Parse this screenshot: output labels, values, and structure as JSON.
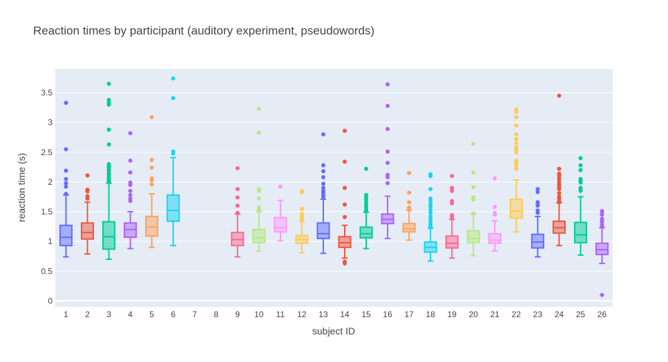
{
  "chart_data": {
    "type": "box",
    "title": "Reaction times by participant (auditory experiment,  pseudowords)",
    "xlabel": "subject ID",
    "ylabel": "reaction time (s)",
    "ylim": [
      -0.1,
      3.9
    ],
    "yticks": [
      0,
      0.5,
      1,
      1.5,
      2,
      2.5,
      3,
      3.5
    ],
    "categories": [
      "1",
      "2",
      "3",
      "4",
      "5",
      "6",
      "7",
      "8",
      "9",
      "10",
      "11",
      "12",
      "13",
      "14",
      "15",
      "16",
      "17",
      "18",
      "19",
      "20",
      "21",
      "22",
      "23",
      "24",
      "25",
      "26"
    ],
    "grid": true,
    "legend": "none",
    "boxes": [
      {
        "id": "1",
        "color": "#636efa",
        "q1": 0.93,
        "median": 1.07,
        "q3": 1.27,
        "lower": 0.74,
        "upper": 1.78,
        "outliers": [
          3.33,
          2.55,
          2.19,
          2.05,
          1.98,
          1.92,
          1.8
        ]
      },
      {
        "id": "2",
        "color": "#ef553b",
        "q1": 1.04,
        "median": 1.15,
        "q3": 1.31,
        "lower": 0.79,
        "upper": 1.66,
        "outliers": [
          2.11,
          1.87,
          1.84,
          1.76,
          1.72
        ]
      },
      {
        "id": "3",
        "color": "#00cc96",
        "q1": 0.87,
        "median": 1.08,
        "q3": 1.33,
        "lower": 0.7,
        "upper": 1.98,
        "outliers": [
          3.65,
          3.38,
          3.33,
          3.3,
          2.88,
          2.63,
          2.3,
          2.27,
          2.24,
          2.2,
          2.15,
          2.12,
          2.08,
          2.05,
          2.02,
          2.0
        ]
      },
      {
        "id": "4",
        "color": "#ab63fa",
        "q1": 1.07,
        "median": 1.2,
        "q3": 1.31,
        "lower": 0.88,
        "upper": 1.5,
        "outliers": [
          2.82,
          2.36,
          2.16,
          1.99,
          1.95,
          1.85,
          1.78,
          1.72,
          1.68
        ]
      },
      {
        "id": "5",
        "color": "#ffa15a",
        "q1": 1.09,
        "median": 1.24,
        "q3": 1.42,
        "lower": 0.9,
        "upper": 1.8,
        "outliers": [
          3.09,
          2.37,
          2.24,
          2.06,
          2.03,
          1.96
        ]
      },
      {
        "id": "6",
        "color": "#19d3f3",
        "q1": 1.34,
        "median": 1.52,
        "q3": 1.78,
        "lower": 0.93,
        "upper": 2.41,
        "outliers": [
          3.74,
          3.41,
          2.51,
          2.48
        ]
      },
      {
        "id": "7",
        "color": "#ff6692"
      },
      {
        "id": "8",
        "color": "#b6e880"
      },
      {
        "id": "9",
        "color": "#ff6692",
        "q1": 0.93,
        "median": 1.03,
        "q3": 1.15,
        "lower": 0.74,
        "upper": 1.46,
        "outliers": [
          2.23,
          1.88,
          1.74,
          1.6,
          1.48
        ]
      },
      {
        "id": "10",
        "color": "#b6e880",
        "q1": 0.98,
        "median": 1.06,
        "q3": 1.2,
        "lower": 0.84,
        "upper": 1.5,
        "outliers": [
          3.23,
          2.83,
          1.88,
          1.85,
          1.72,
          1.57,
          1.53
        ]
      },
      {
        "id": "11",
        "color": "#ff97ff",
        "q1": 1.16,
        "median": 1.23,
        "q3": 1.4,
        "lower": 1.01,
        "upper": 1.69,
        "outliers": [
          1.92
        ]
      },
      {
        "id": "12",
        "color": "#fecb52",
        "q1": 0.97,
        "median": 1.03,
        "q3": 1.1,
        "lower": 0.81,
        "upper": 1.34,
        "outliers": [
          1.85,
          1.83,
          1.55,
          1.46,
          1.42,
          1.38,
          1.35
        ]
      },
      {
        "id": "13",
        "color": "#636efa",
        "q1": 1.05,
        "median": 1.13,
        "q3": 1.31,
        "lower": 0.8,
        "upper": 1.71,
        "outliers": [
          2.8,
          2.28,
          2.18,
          2.08,
          1.97,
          1.9,
          1.85,
          1.82,
          1.78,
          1.75
        ]
      },
      {
        "id": "14",
        "color": "#ef553b",
        "q1": 0.9,
        "median": 0.98,
        "q3": 1.08,
        "lower": 0.72,
        "upper": 1.27,
        "outliers": [
          2.86,
          2.34,
          1.9,
          1.62,
          1.41,
          0.66,
          0.63
        ]
      },
      {
        "id": "15",
        "color": "#00cc96",
        "q1": 1.06,
        "median": 1.13,
        "q3": 1.24,
        "lower": 0.88,
        "upper": 1.49,
        "outliers": [
          2.22,
          1.78,
          1.74,
          1.7,
          1.65,
          1.6,
          1.56,
          1.52
        ]
      },
      {
        "id": "16",
        "color": "#ab63fa",
        "q1": 1.3,
        "median": 1.37,
        "q3": 1.46,
        "lower": 1.05,
        "upper": 1.76,
        "outliers": [
          3.64,
          3.28,
          2.89,
          2.51,
          2.32,
          2.12,
          2.08,
          1.98
        ]
      },
      {
        "id": "17",
        "color": "#ffa15a",
        "q1": 1.16,
        "median": 1.21,
        "q3": 1.3,
        "lower": 1.02,
        "upper": 1.52,
        "outliers": [
          2.15,
          1.82,
          1.66,
          1.57,
          1.55
        ]
      },
      {
        "id": "18",
        "color": "#19d3f3",
        "q1": 0.82,
        "median": 0.9,
        "q3": 0.99,
        "lower": 0.67,
        "upper": 1.22,
        "outliers": [
          2.13,
          2.1,
          1.88,
          1.72,
          1.68,
          1.62,
          1.58,
          1.53,
          1.48,
          1.42,
          1.37,
          1.32,
          1.28,
          1.25
        ]
      },
      {
        "id": "19",
        "color": "#ff6692",
        "q1": 0.89,
        "median": 0.97,
        "q3": 1.09,
        "lower": 0.72,
        "upper": 1.37,
        "outliers": [
          2.1,
          1.9,
          1.88,
          1.85,
          1.68,
          1.64,
          1.44,
          1.41
        ]
      },
      {
        "id": "20",
        "color": "#b6e880",
        "q1": 0.98,
        "median": 1.05,
        "q3": 1.18,
        "lower": 0.76,
        "upper": 1.46,
        "outliers": [
          2.64,
          2.16,
          1.91,
          1.74,
          1.7,
          1.47
        ]
      },
      {
        "id": "21",
        "color": "#ff97ff",
        "q1": 0.97,
        "median": 1.02,
        "q3": 1.13,
        "lower": 0.84,
        "upper": 1.35,
        "outliers": [
          2.06,
          1.58,
          1.48,
          1.45
        ]
      },
      {
        "id": "22",
        "color": "#fecb52",
        "q1": 1.39,
        "median": 1.51,
        "q3": 1.71,
        "lower": 1.16,
        "upper": 2.03,
        "outliers": [
          3.22,
          3.18,
          3.09,
          2.95,
          2.8,
          2.72,
          2.65,
          2.58,
          2.55,
          2.5,
          2.36,
          2.33,
          2.3,
          2.25,
          2.22
        ]
      },
      {
        "id": "23",
        "color": "#636efa",
        "q1": 0.89,
        "median": 0.99,
        "q3": 1.12,
        "lower": 0.74,
        "upper": 1.42,
        "outliers": [
          1.88,
          1.83,
          1.66,
          1.62,
          1.6,
          1.52,
          1.48
        ]
      },
      {
        "id": "24",
        "color": "#ef553b",
        "q1": 1.14,
        "median": 1.23,
        "q3": 1.34,
        "lower": 0.93,
        "upper": 1.65,
        "outliers": [
          3.45,
          2.22,
          2.14,
          2.11,
          2.06,
          2.01,
          1.96,
          1.92,
          1.88,
          1.81,
          1.75,
          1.72,
          1.68,
          1.66
        ]
      },
      {
        "id": "25",
        "color": "#00cc96",
        "q1": 0.98,
        "median": 1.11,
        "q3": 1.32,
        "lower": 0.77,
        "upper": 1.75,
        "outliers": [
          2.4,
          2.28,
          2.2,
          2.05,
          2.02,
          1.99,
          1.9,
          1.88,
          1.85
        ]
      },
      {
        "id": "26",
        "color": "#ab63fa",
        "q1": 0.78,
        "median": 0.86,
        "q3": 0.97,
        "lower": 0.63,
        "upper": 1.23,
        "outliers": [
          1.51,
          1.49,
          1.45,
          1.38,
          1.35,
          1.32,
          1.28,
          1.25,
          0.1
        ]
      }
    ]
  }
}
